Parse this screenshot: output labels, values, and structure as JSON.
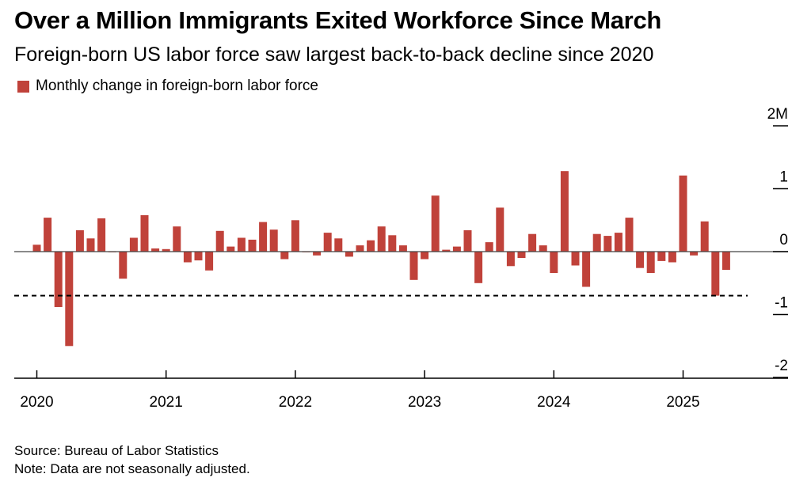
{
  "title": "Over a Million Immigrants Exited Workforce Since March",
  "subtitle": "Foreign-born US labor force saw largest back-to-back decline since 2020",
  "legend": {
    "label": "Monthly change in foreign-born labor force",
    "color": "#c0423a"
  },
  "source": "Source: Bureau of Labor Statistics",
  "note": "Note: Data are not seasonally adjusted.",
  "colors": {
    "bar": "#c0423a",
    "axis": "#000000",
    "zero_line": "#444444"
  },
  "chart_data": {
    "type": "bar",
    "series": [
      {
        "name": "Monthly change in foreign-born labor force",
        "x": [
          "2020-01",
          "2020-02",
          "2020-03",
          "2020-04",
          "2020-05",
          "2020-06",
          "2020-07",
          "2020-08",
          "2020-09",
          "2020-10",
          "2020-11",
          "2020-12",
          "2021-01",
          "2021-02",
          "2021-03",
          "2021-04",
          "2021-05",
          "2021-06",
          "2021-07",
          "2021-08",
          "2021-09",
          "2021-10",
          "2021-11",
          "2021-12",
          "2022-01",
          "2022-02",
          "2022-03",
          "2022-04",
          "2022-05",
          "2022-06",
          "2022-07",
          "2022-08",
          "2022-09",
          "2022-10",
          "2022-11",
          "2022-12",
          "2023-01",
          "2023-02",
          "2023-03",
          "2023-04",
          "2023-05",
          "2023-06",
          "2023-07",
          "2023-08",
          "2023-09",
          "2023-10",
          "2023-11",
          "2023-12",
          "2024-01",
          "2024-02",
          "2024-03",
          "2024-04",
          "2024-05",
          "2024-06",
          "2024-07",
          "2024-08",
          "2024-09",
          "2024-10",
          "2024-11",
          "2024-12",
          "2025-01",
          "2025-02",
          "2025-03",
          "2025-04",
          "2025-05"
        ],
        "values": [
          0.11,
          0.54,
          -0.88,
          -1.5,
          0.34,
          0.21,
          0.53,
          0.0,
          -0.43,
          0.22,
          0.58,
          0.05,
          0.04,
          0.4,
          -0.17,
          -0.14,
          -0.3,
          0.33,
          0.08,
          0.22,
          0.19,
          0.47,
          0.35,
          -0.12,
          0.5,
          0.0,
          -0.06,
          0.3,
          0.21,
          -0.08,
          0.1,
          0.18,
          0.4,
          0.26,
          0.1,
          -0.45,
          -0.12,
          0.89,
          0.03,
          0.08,
          0.34,
          -0.5,
          0.15,
          0.7,
          -0.23,
          -0.1,
          0.28,
          0.1,
          -0.34,
          1.28,
          -0.22,
          -0.56,
          0.28,
          0.25,
          0.3,
          0.54,
          -0.26,
          -0.34,
          -0.15,
          -0.17,
          1.21,
          -0.06,
          0.48,
          -0.7,
          -0.29
        ]
      }
    ],
    "reference_line": {
      "value": -0.7,
      "style": "dashed"
    },
    "ylim": [
      -2,
      2
    ],
    "y_ticks": [
      {
        "value": 2,
        "label": "2M"
      },
      {
        "value": 1,
        "label": "1"
      },
      {
        "value": 0,
        "label": "0"
      },
      {
        "value": -1,
        "label": "-1"
      },
      {
        "value": -2,
        "label": "-2"
      }
    ],
    "x_ticks": [
      {
        "x": "2020-01",
        "label": "2020"
      },
      {
        "x": "2021-01",
        "label": "2021"
      },
      {
        "x": "2022-01",
        "label": "2022"
      },
      {
        "x": "2023-01",
        "label": "2023"
      },
      {
        "x": "2024-01",
        "label": "2024"
      },
      {
        "x": "2025-01",
        "label": "2025"
      }
    ],
    "xlabel": "",
    "ylabel": "",
    "y_axis_position": "right",
    "grid": false
  }
}
